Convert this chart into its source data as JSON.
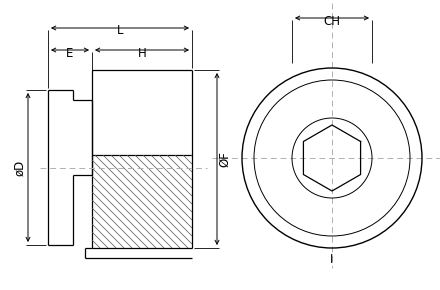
{
  "bg_color": "#ffffff",
  "line_color": "#000000",
  "dash_color": "#b0b0b0",
  "labels": {
    "L": "L",
    "E": "E",
    "H": "H",
    "dD": "øD",
    "dF": "ØF",
    "CH": "CH",
    "I": "I"
  },
  "font_size": 8.5
}
